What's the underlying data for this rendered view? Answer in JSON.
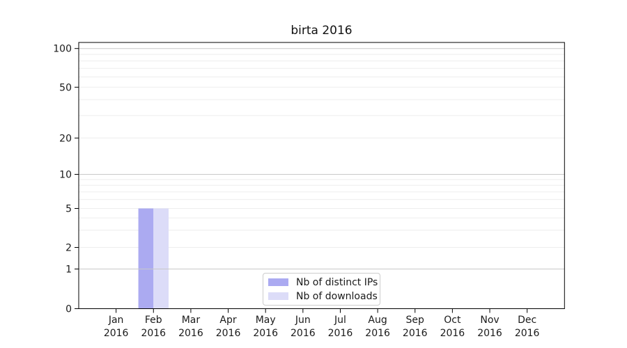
{
  "chart_data": {
    "type": "bar",
    "title": "birta 2016",
    "categories": [
      "Jan",
      "Feb",
      "Mar",
      "Apr",
      "May",
      "Jun",
      "Jul",
      "Aug",
      "Sep",
      "Oct",
      "Nov",
      "Dec"
    ],
    "category_year": "2016",
    "series": [
      {
        "name": "Nb of distinct IPs",
        "color": "#abaaf1",
        "values": [
          0,
          5,
          0,
          0,
          0,
          0,
          0,
          0,
          0,
          0,
          0,
          0
        ]
      },
      {
        "name": "Nb of downloads",
        "color": "#dcdcf8",
        "values": [
          0,
          5,
          0,
          0,
          0,
          0,
          0,
          0,
          0,
          0,
          0,
          0
        ]
      }
    ],
    "y_ticks": [
      0,
      1,
      2,
      5,
      10,
      20,
      50,
      100
    ],
    "y_minor_ticks": [
      3,
      4,
      6,
      7,
      8,
      9,
      30,
      40,
      60,
      70,
      80,
      90
    ],
    "ylim": [
      0,
      112
    ],
    "xlabel": "",
    "ylabel": "",
    "scale": "custom-log",
    "grid": "horizontal",
    "legend_position": "lower-center",
    "colors": {
      "spine": "#000000",
      "decade_gridline": "#c8c8c8",
      "gridline": "#ededed",
      "tick_label": "#1a1a1a",
      "legend_border": "#cccccc"
    }
  }
}
